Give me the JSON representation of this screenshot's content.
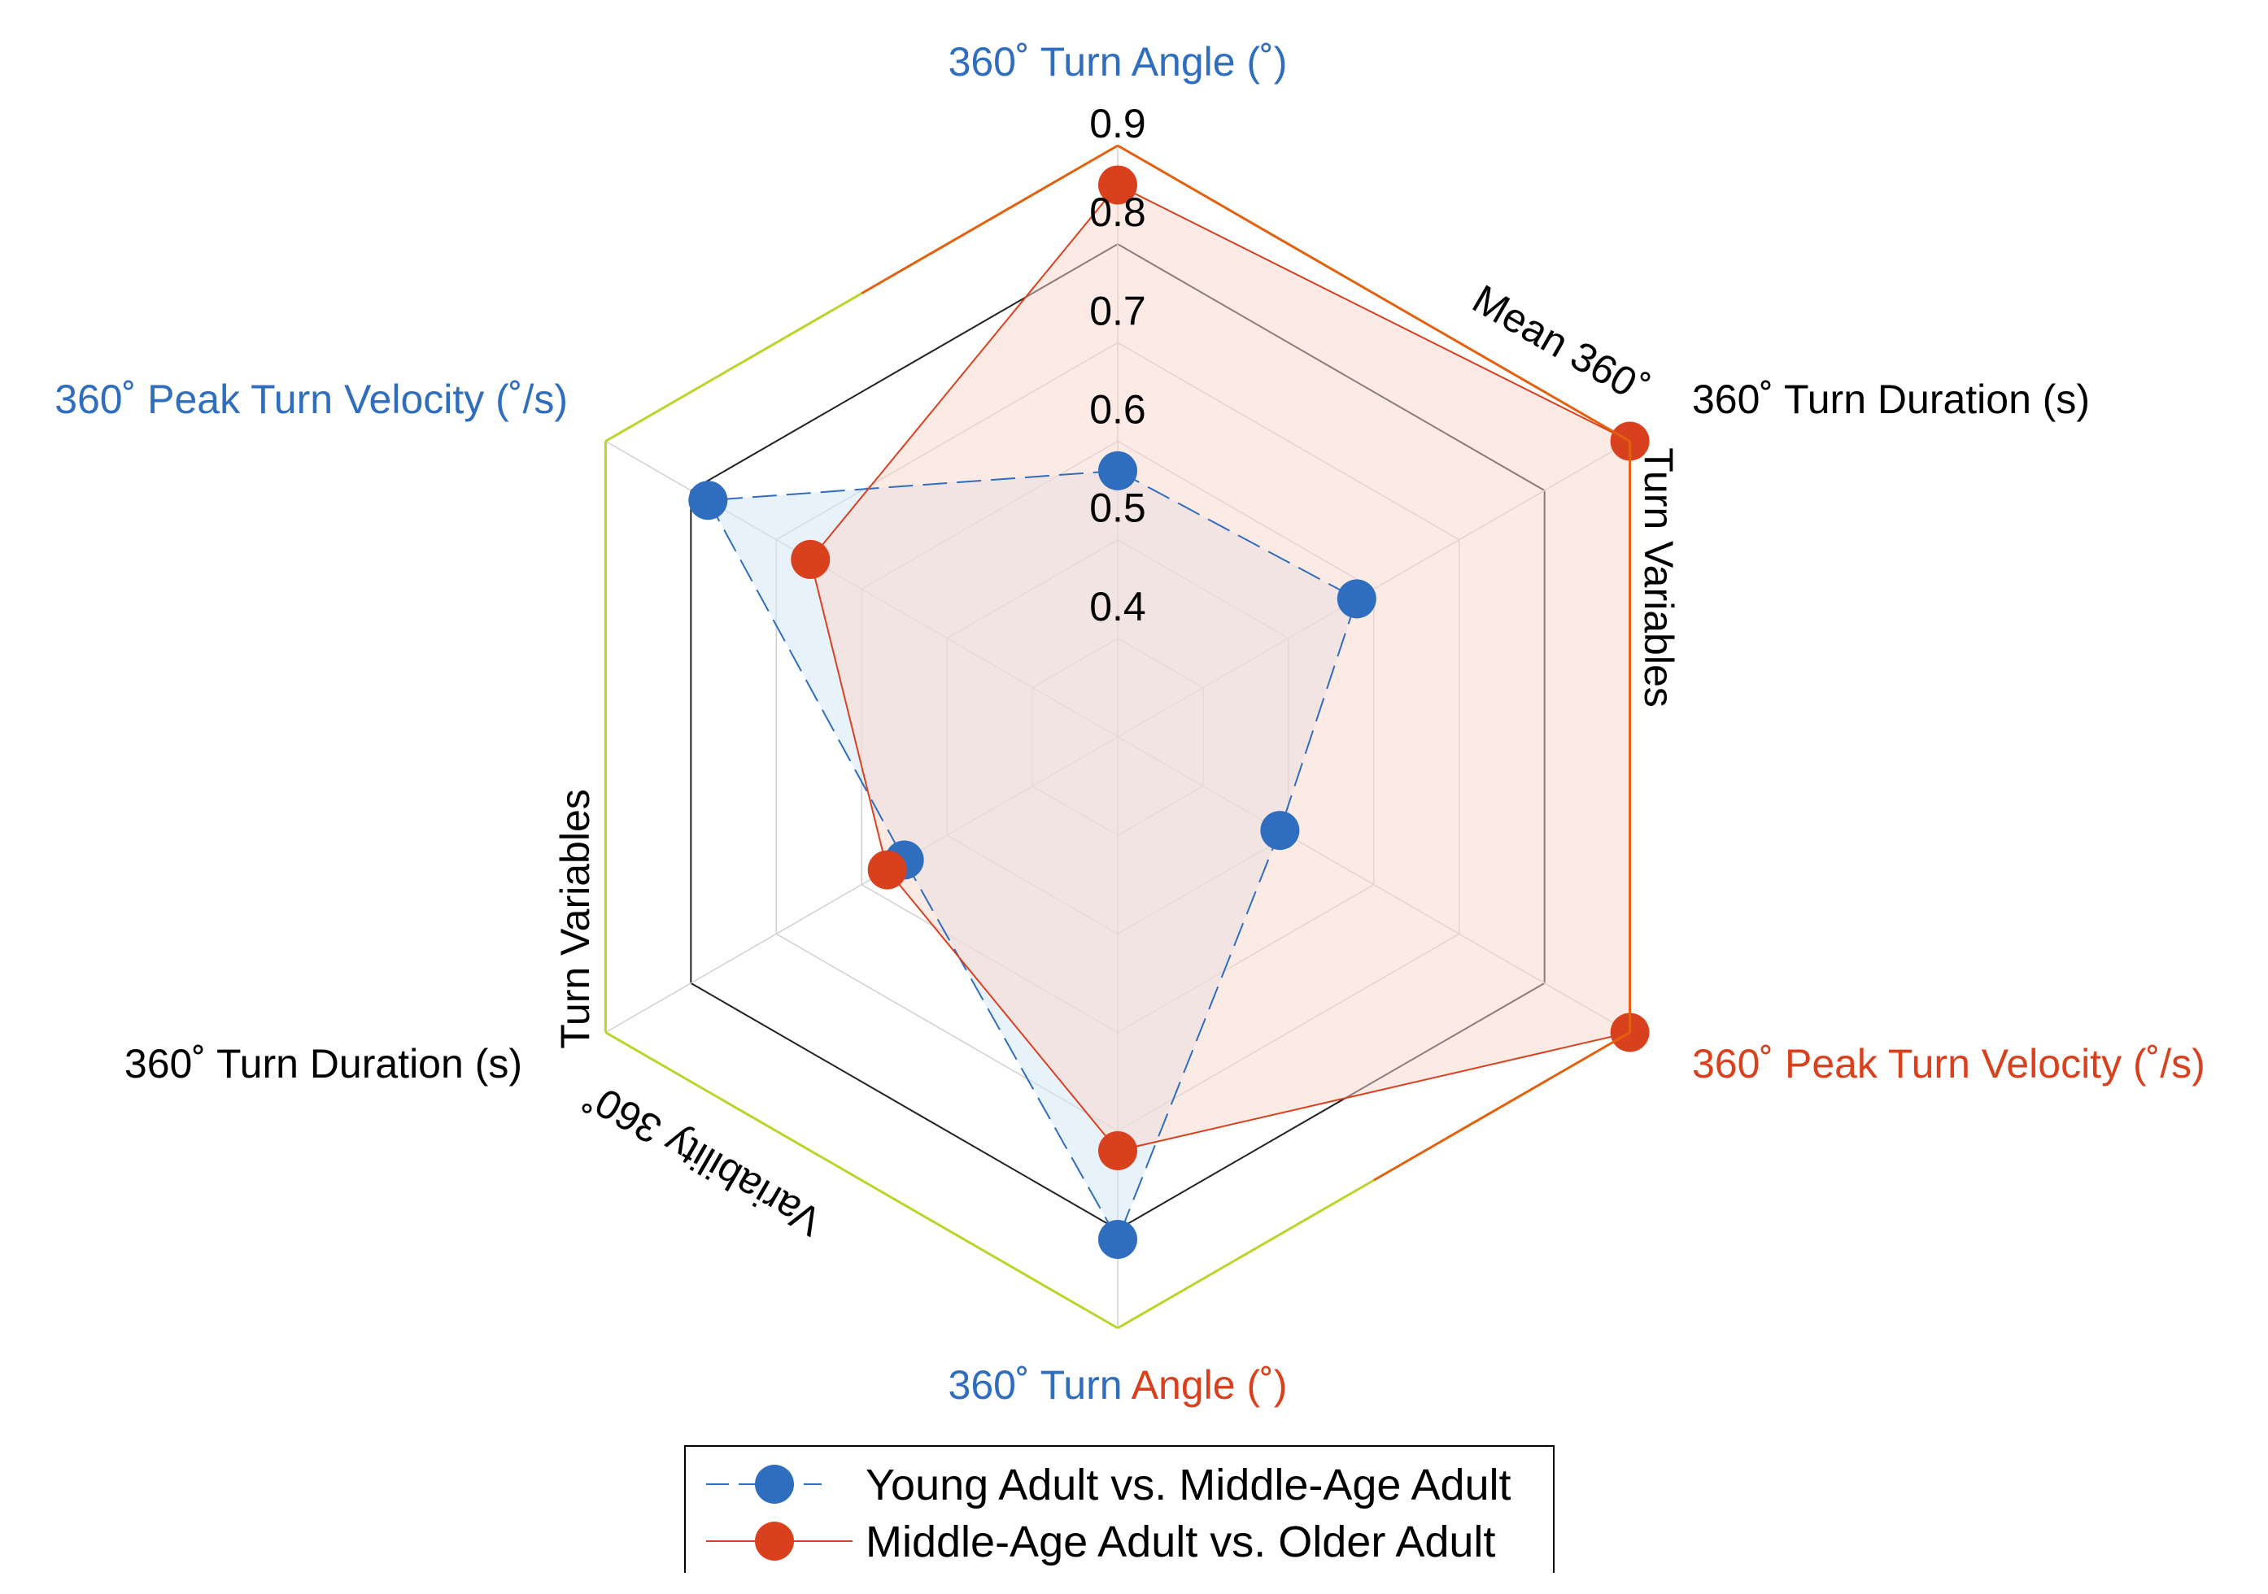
{
  "chart_data": {
    "type": "radar",
    "title": "",
    "radial_ticks": [
      "0.4",
      "0.5",
      "0.6",
      "0.7",
      "0.8",
      "0.9"
    ],
    "radial_range": [
      0.3,
      0.9
    ],
    "axes": [
      {
        "id": "top",
        "angle_deg": 90
      },
      {
        "id": "upper-right",
        "angle_deg": 30
      },
      {
        "id": "lower-right",
        "angle_deg": -30
      },
      {
        "id": "bottom",
        "angle_deg": -90
      },
      {
        "id": "lower-left",
        "angle_deg": -150
      },
      {
        "id": "upper-left",
        "angle_deg": 150
      }
    ],
    "axis_labels": {
      "top": {
        "text": "360˚ Turn Angle (˚)",
        "color": "#2f6dbf"
      },
      "upper_right": {
        "text": "360˚ Turn Duration (s)",
        "color": "#000000"
      },
      "lower_right": {
        "text": "360˚ Peak Turn Velocity (˚/s)",
        "color": "#d9411e"
      },
      "bottom_part1": {
        "text": "360˚ Turn ",
        "color": "#2f6dbf"
      },
      "bottom_part2": {
        "text": "Angle (˚)",
        "color": "#d9411e"
      },
      "lower_left": {
        "text": "360˚ Turn Duration (s)",
        "color": "#000000"
      },
      "upper_left": {
        "text": "360˚ Peak Turn Velocity (˚/s)",
        "color": "#2f6dbf"
      }
    },
    "group_labels": {
      "mean_title": "Mean 360˚",
      "mean_sub": "Turn Variables",
      "variability_title": "Variability 360˚",
      "variability_sub": "Turn Variables"
    },
    "series": [
      {
        "name": "Young Adult vs. Middle-Age Adult",
        "color": "#2f6dbf",
        "fill": "#d6e8f5",
        "line_style": "dashed",
        "values": [
          0.57,
          0.58,
          0.49,
          0.81,
          0.55,
          0.78
        ]
      },
      {
        "name": "Middle-Age Adult vs. Older Adult",
        "color": "#d9411e",
        "fill": "#f9d5cc",
        "line_style": "solid",
        "values": [
          0.86,
          0.9,
          0.9,
          0.72,
          0.57,
          0.66
        ]
      }
    ],
    "outline_colors": {
      "mean": "#e3600c",
      "variability": "#bcd42a"
    },
    "legend_position": "bottom"
  }
}
